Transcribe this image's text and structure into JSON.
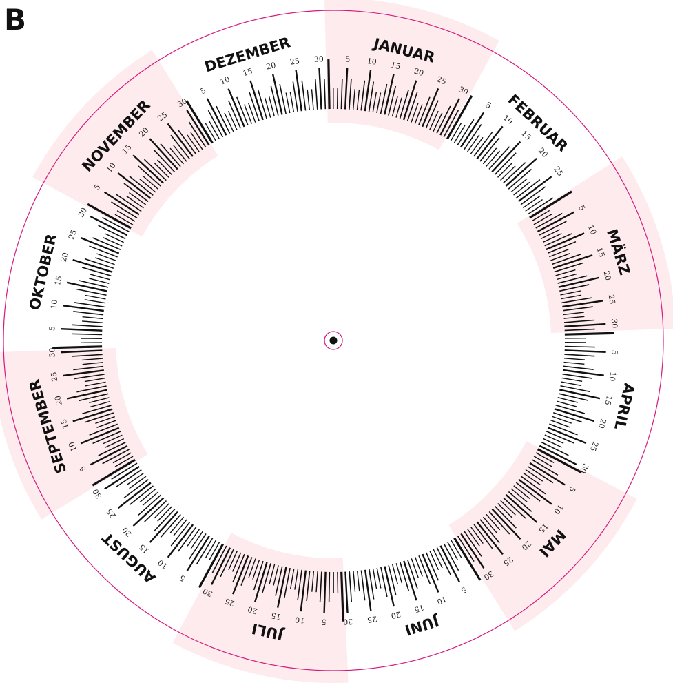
{
  "panel_letter": "B",
  "colors": {
    "ring_border": "#d6197c",
    "alternate_band": "#fdebee",
    "tick": "#111111",
    "hub": "#111111"
  },
  "day_label_values": [
    "5",
    "10",
    "15",
    "20",
    "25",
    "30"
  ],
  "months": [
    {
      "name": "JANUAR",
      "days": 31,
      "shaded": true
    },
    {
      "name": "FEBRUAR",
      "days": 29,
      "shaded": false
    },
    {
      "name": "MÄRZ",
      "days": 31,
      "shaded": true
    },
    {
      "name": "APRIL",
      "days": 30,
      "shaded": false
    },
    {
      "name": "MAI",
      "days": 31,
      "shaded": true
    },
    {
      "name": "JUNI",
      "days": 30,
      "shaded": false
    },
    {
      "name": "JULI",
      "days": 31,
      "shaded": true
    },
    {
      "name": "AUGUST",
      "days": 31,
      "shaded": false
    },
    {
      "name": "SEPTEMBER",
      "days": 30,
      "shaded": true
    },
    {
      "name": "OKTOBER",
      "days": 31,
      "shaded": false
    },
    {
      "name": "NOVEMBER",
      "days": 30,
      "shaded": true
    },
    {
      "name": "DEZEMBER",
      "days": 31,
      "shaded": false
    }
  ]
}
